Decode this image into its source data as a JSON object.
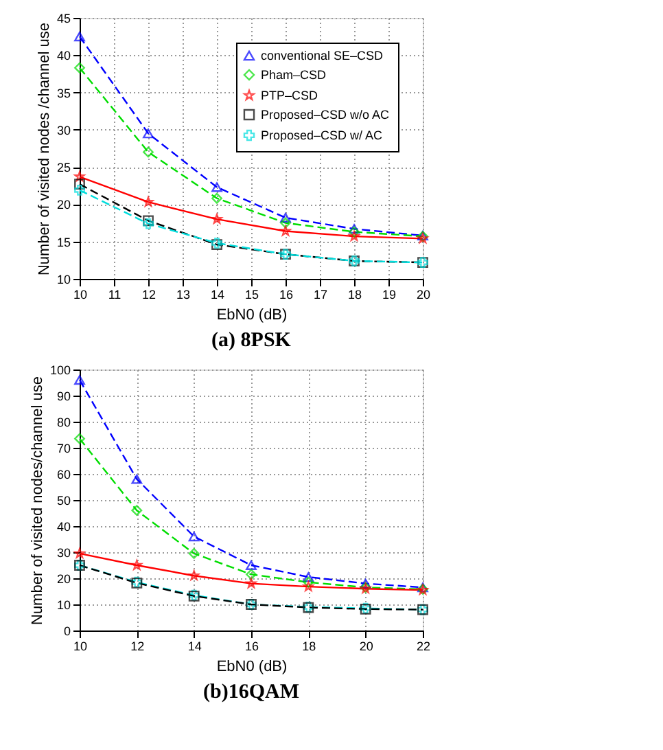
{
  "chart_data": [
    {
      "type": "line",
      "title": "(a) 8PSK",
      "xlabel": "EbN0 (dB)",
      "ylabel": "Number of visited nodes /channel use",
      "x": [
        10,
        12,
        14,
        16,
        18,
        20
      ],
      "xlim": [
        10,
        20
      ],
      "xticks": [
        10,
        11,
        12,
        13,
        14,
        15,
        16,
        17,
        18,
        19,
        20
      ],
      "ylim": [
        10,
        45
      ],
      "yticks": [
        10,
        15,
        20,
        25,
        30,
        35,
        40,
        45
      ],
      "grid": true,
      "legend": "top right",
      "series": [
        {
          "name": "conventional SE–CSD",
          "color": "#0000ff",
          "marker": "triangle",
          "line_style": "dashed",
          "values": [
            42.5,
            29.5,
            22.3,
            18.2,
            16.7,
            15.8
          ]
        },
        {
          "name": "Pham–CSD",
          "color": "#00dd00",
          "marker": "diamond",
          "line_style": "dashed",
          "values": [
            38.3,
            27.0,
            20.8,
            17.5,
            16.3,
            15.7
          ]
        },
        {
          "name": "PTP–CSD",
          "color": "#ff0000",
          "marker": "star",
          "line_style": "solid",
          "values": [
            23.7,
            20.3,
            18.0,
            16.4,
            15.7,
            15.4
          ]
        },
        {
          "name": "Proposed–CSD w/o AC",
          "color": "#000000",
          "marker": "square",
          "line_style": "dashed",
          "values": [
            22.7,
            17.8,
            14.6,
            13.3,
            12.4,
            12.2
          ]
        },
        {
          "name": "Proposed–CSD w/ AC",
          "color": "#00dddd",
          "marker": "cross",
          "line_style": "dashed",
          "values": [
            21.9,
            17.4,
            14.8,
            13.3,
            12.4,
            12.2
          ]
        }
      ]
    },
    {
      "type": "line",
      "title": "(b)16QAM",
      "xlabel": "EbN0 (dB)",
      "ylabel": "Number of visited nodes/channel use",
      "x": [
        10,
        12,
        14,
        16,
        18,
        20,
        22
      ],
      "xlim": [
        10,
        22
      ],
      "xticks": [
        10,
        12,
        14,
        16,
        18,
        20,
        22
      ],
      "ylim": [
        0,
        100
      ],
      "yticks": [
        0,
        10,
        20,
        30,
        40,
        50,
        60,
        70,
        80,
        90,
        100
      ],
      "grid": true,
      "legend": "top right",
      "series": [
        {
          "name": "conventional SE–CSD",
          "color": "#0000ff",
          "marker": "triangle",
          "line_style": "dashed",
          "values": [
            96,
            58,
            36,
            25,
            20.5,
            18,
            16.5
          ]
        },
        {
          "name": "Pham–CSD",
          "color": "#00dd00",
          "marker": "diamond",
          "line_style": "dashed",
          "values": [
            73.5,
            46,
            29.5,
            21.5,
            18.5,
            16.5,
            15.8
          ]
        },
        {
          "name": "PTP–CSD",
          "color": "#ff0000",
          "marker": "star",
          "line_style": "solid",
          "values": [
            29.5,
            25,
            21,
            18,
            16.8,
            16,
            15.5
          ]
        },
        {
          "name": "Proposed–CSD w/ AC",
          "color": "#00dddd",
          "marker": "cross",
          "line_style": "dashed",
          "values": [
            25,
            18.5,
            13.5,
            10,
            9,
            8.5,
            8
          ]
        },
        {
          "name": "Proposed–CSD w/o AC",
          "color": "#000000",
          "marker": "square",
          "line_style": "dashed",
          "values": [
            25,
            18.2,
            13.2,
            10,
            8.8,
            8.2,
            8
          ]
        }
      ]
    }
  ]
}
